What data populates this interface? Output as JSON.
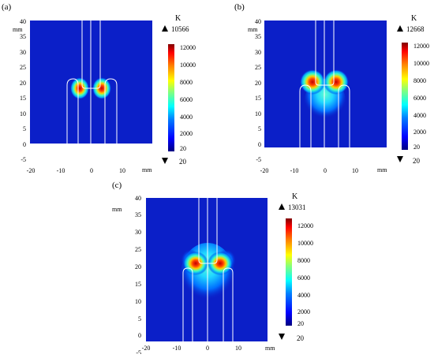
{
  "panels": [
    {
      "label": "(a)",
      "unit": "K",
      "max_value": "10566",
      "min_value": "20",
      "colorbar_ticks": [
        "12000",
        "10000",
        "8000",
        "6000",
        "4000",
        "2000",
        "20"
      ],
      "x_axis_unit": "mm",
      "y_axis_unit": "mm",
      "x_ticks": [
        "-20",
        "-10",
        "0",
        "10"
      ],
      "y_ticks": [
        "40",
        "35",
        "30",
        "25",
        "20",
        "15",
        "10",
        "5",
        "0",
        "-5"
      ]
    },
    {
      "label": "(b)",
      "unit": "K",
      "max_value": "12668",
      "min_value": "20",
      "colorbar_ticks": [
        "12000",
        "10000",
        "8000",
        "6000",
        "4000",
        "2000",
        "20"
      ],
      "x_axis_unit": "mm",
      "y_axis_unit": "mm",
      "x_ticks": [
        "-20",
        "-10",
        "0",
        "10"
      ],
      "y_ticks": [
        "40",
        "35",
        "30",
        "25",
        "20",
        "15",
        "10",
        "5",
        "0",
        "-5"
      ]
    },
    {
      "label": "(c)",
      "unit": "K",
      "max_value": "13031",
      "min_value": "20",
      "colorbar_ticks": [
        "12000",
        "10000",
        "8000",
        "6000",
        "4000",
        "2000",
        "20"
      ],
      "x_axis_unit": "mm",
      "y_axis_unit": "mm",
      "x_ticks": [
        "-20",
        "-10",
        "0",
        "10"
      ],
      "y_ticks": [
        "40",
        "35",
        "30",
        "25",
        "20",
        "15",
        "10",
        "5",
        "0",
        "-5"
      ]
    }
  ],
  "colors": {
    "background_field": "#0b1fc8",
    "outline": "#ffffff",
    "colormap": [
      "#000080",
      "#0000ff",
      "#0080ff",
      "#00ffff",
      "#80ff80",
      "#ffff00",
      "#ff8000",
      "#ff0000",
      "#800000"
    ]
  }
}
